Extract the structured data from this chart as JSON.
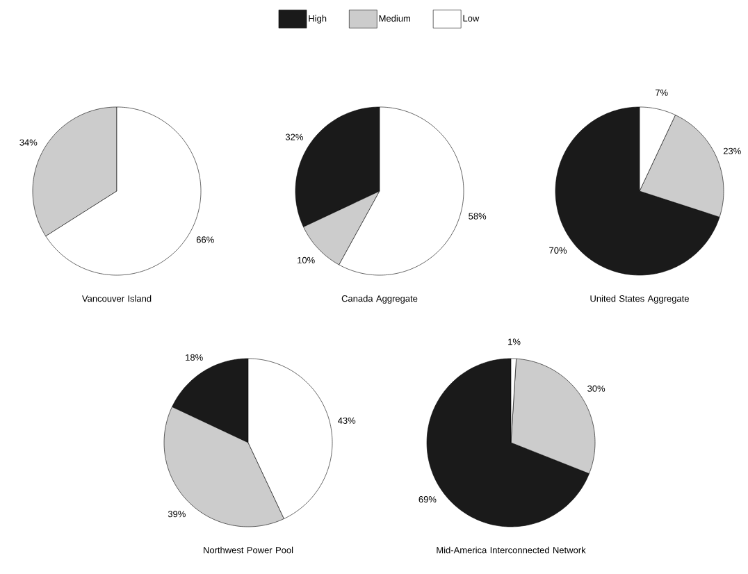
{
  "chart_data": [
    {
      "type": "pie",
      "title": "Vancouver Island",
      "categories": [
        null,
        null
      ],
      "values": [
        34,
        66
      ],
      "colors": [
        "#cccccc",
        "#ffffff"
      ],
      "value_labels": [
        "34%",
        "66%"
      ]
    },
    {
      "type": "pie",
      "title": "Canada Aggregate",
      "categories": [
        "High",
        "Medium",
        "Low"
      ],
      "values": [
        32,
        10,
        58
      ],
      "colors": [
        "#1a1a1a",
        "#cccccc",
        "#ffffff"
      ],
      "value_labels": [
        "32%",
        "10%",
        "58%"
      ],
      "legend": "top"
    },
    {
      "type": "pie",
      "title": "United States Aggregate",
      "categories": [
        null,
        null,
        null
      ],
      "values": [
        70,
        23,
        7
      ],
      "colors": [
        "#1a1a1a",
        "#cccccc",
        "#ffffff"
      ],
      "value_labels": [
        "70%",
        "23%",
        "7%"
      ]
    },
    {
      "type": "pie",
      "title": "Northwest Power Pool",
      "categories": [
        null,
        null,
        null
      ],
      "values": [
        18,
        39,
        43
      ],
      "colors": [
        "#1a1a1a",
        "#cccccc",
        "#ffffff"
      ],
      "value_labels": [
        "18%",
        "39%",
        "43%"
      ]
    },
    {
      "type": "pie",
      "title": "Mid-America Interconnected Network",
      "categories": [
        null,
        null,
        null
      ],
      "values": [
        69,
        30,
        1
      ],
      "colors": [
        "#1a1a1a",
        "#cccccc",
        "#ffffff"
      ],
      "value_labels": [
        "69%",
        "30%",
        "1%"
      ]
    }
  ]
}
